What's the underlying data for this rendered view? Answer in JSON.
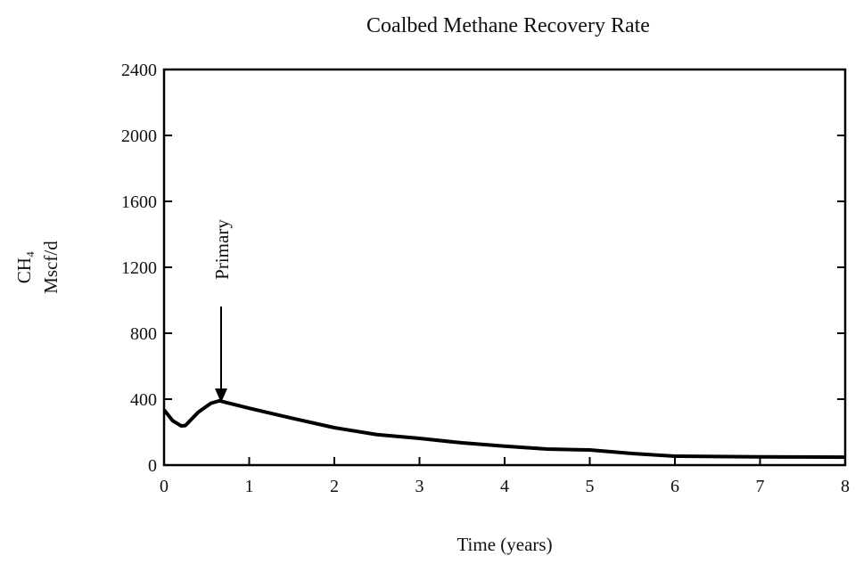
{
  "chart_data": {
    "type": "line",
    "title": "Coalbed Methane Recovery Rate",
    "xlabel": "Time (years)",
    "ylabel": [
      "CH₄",
      "Mscf/d"
    ],
    "annotation": "Primary",
    "x": [
      0,
      0.1,
      0.2,
      0.25,
      0.4,
      0.55,
      0.65,
      1,
      1.5,
      2,
      2.5,
      3,
      3.5,
      4,
      4.5,
      5,
      5.5,
      6,
      6.5,
      7,
      7.5,
      8
    ],
    "series": [
      {
        "color": "#000000",
        "values": [
          335,
          270,
          238,
          240,
          320,
          375,
          390,
          345,
          285,
          227,
          185,
          162,
          135,
          115,
          97,
          92,
          70,
          54,
          52,
          50,
          49,
          48
        ]
      }
    ],
    "xlim": [
      0,
      8
    ],
    "xticks": [
      0,
      1,
      2,
      3,
      4,
      5,
      6,
      7,
      8
    ],
    "ylim": [
      0,
      2400
    ],
    "yticks": [
      0,
      400,
      800,
      1200,
      1600,
      2000,
      2400
    ]
  }
}
